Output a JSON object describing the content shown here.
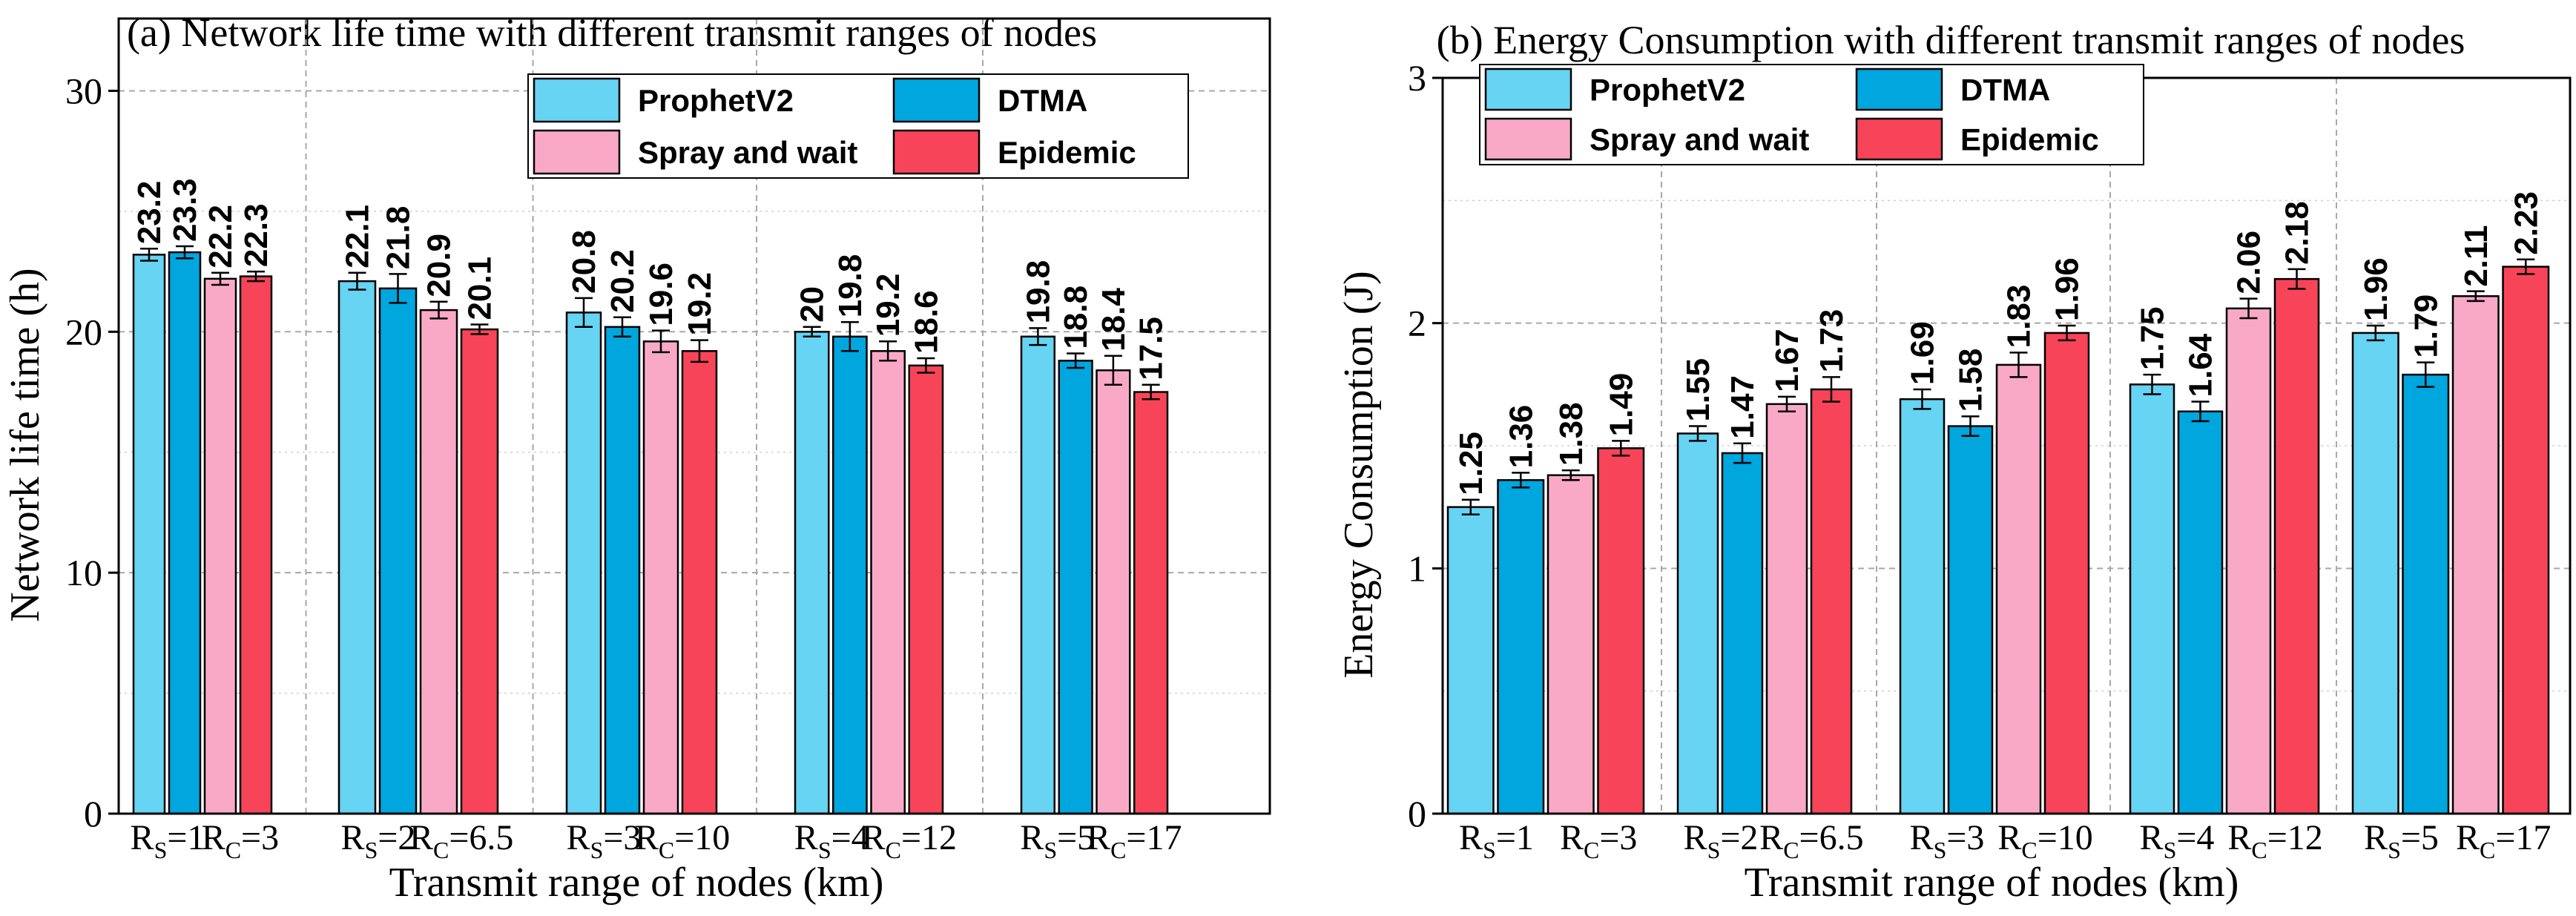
{
  "chart_data": [
    {
      "type": "bar",
      "title": "(a) Network life time with different transmit ranges of nodes",
      "xlabel": "Transmit range of nodes (km)",
      "ylabel": "Network life time (h)",
      "ylim": [
        0,
        33
      ],
      "yticks": [
        "0",
        "10",
        "20",
        "30"
      ],
      "ytick_values": [
        0,
        10,
        20,
        30
      ],
      "categories": [
        {
          "s_label": "R",
          "s_sub": "S",
          "s_val": "=1",
          "c_label": "R",
          "c_sub": "C",
          "c_val": "=3"
        },
        {
          "s_label": "R",
          "s_sub": "S",
          "s_val": "=2",
          "c_label": "R",
          "c_sub": "C",
          "c_val": "=6.5"
        },
        {
          "s_label": "R",
          "s_sub": "S",
          "s_val": "=3",
          "c_label": "R",
          "c_sub": "C",
          "c_val": "=10"
        },
        {
          "s_label": "R",
          "s_sub": "S",
          "s_val": "=4",
          "c_label": "R",
          "c_sub": "C",
          "c_val": "=12"
        },
        {
          "s_label": "R",
          "s_sub": "S",
          "s_val": "=5",
          "c_label": "R",
          "c_sub": "C",
          "c_val": "=17"
        }
      ],
      "series": [
        {
          "name": "ProphetV2",
          "values": [
            23.2,
            22.1,
            20.8,
            20,
            19.8
          ],
          "labels": [
            "23.2",
            "22.1",
            "20.8",
            "20",
            "19.8"
          ],
          "errors": [
            0.25,
            0.35,
            0.6,
            0.2,
            0.35
          ]
        },
        {
          "name": "DTMA",
          "values": [
            23.3,
            21.8,
            20.2,
            19.8,
            18.8
          ],
          "labels": [
            "23.3",
            "21.8",
            "20.2",
            "19.8",
            "18.8"
          ],
          "errors": [
            0.25,
            0.6,
            0.4,
            0.6,
            0.3
          ]
        },
        {
          "name": "Spray and wait",
          "values": [
            22.2,
            20.9,
            19.6,
            19.2,
            18.4
          ],
          "labels": [
            "22.2",
            "20.9",
            "19.6",
            "19.2",
            "18.4"
          ],
          "errors": [
            0.25,
            0.35,
            0.45,
            0.4,
            0.6
          ]
        },
        {
          "name": "Epidemic",
          "values": [
            22.3,
            20.1,
            19.2,
            18.6,
            17.5
          ],
          "labels": [
            "22.3",
            "20.1",
            "19.2",
            "18.6",
            "17.5"
          ],
          "errors": [
            0.2,
            0.2,
            0.45,
            0.3,
            0.3
          ]
        }
      ],
      "legend": "top-right",
      "grid": true
    },
    {
      "type": "bar",
      "title": "(b) Energy Consumption with different transmit ranges of nodes",
      "xlabel": "Transmit range of nodes (km)",
      "ylabel": "Energy Consumption (J)",
      "ylim": [
        0,
        3
      ],
      "yticks": [
        "0",
        "1",
        "2",
        "3"
      ],
      "ytick_values": [
        0,
        1,
        2,
        3
      ],
      "categories": [
        {
          "s_label": "R",
          "s_sub": "S",
          "s_val": "=1",
          "c_label": "R",
          "c_sub": "C",
          "c_val": "=3"
        },
        {
          "s_label": "R",
          "s_sub": "S",
          "s_val": "=2",
          "c_label": "R",
          "c_sub": "C",
          "c_val": "=6.5"
        },
        {
          "s_label": "R",
          "s_sub": "S",
          "s_val": "=3",
          "c_label": "R",
          "c_sub": "C",
          "c_val": "=10"
        },
        {
          "s_label": "R",
          "s_sub": "S",
          "s_val": "=4",
          "c_label": "R",
          "c_sub": "C",
          "c_val": "=12"
        },
        {
          "s_label": "R",
          "s_sub": "S",
          "s_val": "=5",
          "c_label": "R",
          "c_sub": "C",
          "c_val": "=17"
        }
      ],
      "series": [
        {
          "name": "ProphetV2",
          "values": [
            1.25,
            1.55,
            1.69,
            1.75,
            1.96
          ],
          "labels": [
            "1.25",
            "1.55",
            "1.69",
            "1.75",
            "1.96"
          ],
          "errors": [
            0.03,
            0.03,
            0.04,
            0.04,
            0.03
          ]
        },
        {
          "name": "DTMA",
          "values": [
            1.36,
            1.47,
            1.58,
            1.64,
            1.79
          ],
          "labels": [
            "1.36",
            "1.47",
            "1.58",
            "1.64",
            "1.79"
          ],
          "errors": [
            0.03,
            0.04,
            0.04,
            0.04,
            0.05
          ]
        },
        {
          "name": "Spray and wait",
          "values": [
            1.38,
            1.67,
            1.83,
            2.06,
            2.11
          ],
          "labels": [
            "1.38",
            "1.67",
            "1.83",
            "2.06",
            "2.11"
          ],
          "errors": [
            0.02,
            0.03,
            0.05,
            0.04,
            0.02
          ]
        },
        {
          "name": "Epidemic",
          "values": [
            1.49,
            1.73,
            1.96,
            2.18,
            2.23
          ],
          "labels": [
            "1.49",
            "1.73",
            "1.96",
            "2.18",
            "2.23"
          ],
          "errors": [
            0.03,
            0.05,
            0.03,
            0.04,
            0.03
          ]
        }
      ],
      "legend": "top-left",
      "grid": true
    }
  ],
  "colors": {
    "ProphetV2": "#66d4f2",
    "DTMA": "#00a6de",
    "Spray and wait": "#f9a9c6",
    "Epidemic": "#f84459",
    "grid": "#a8a8a8"
  }
}
